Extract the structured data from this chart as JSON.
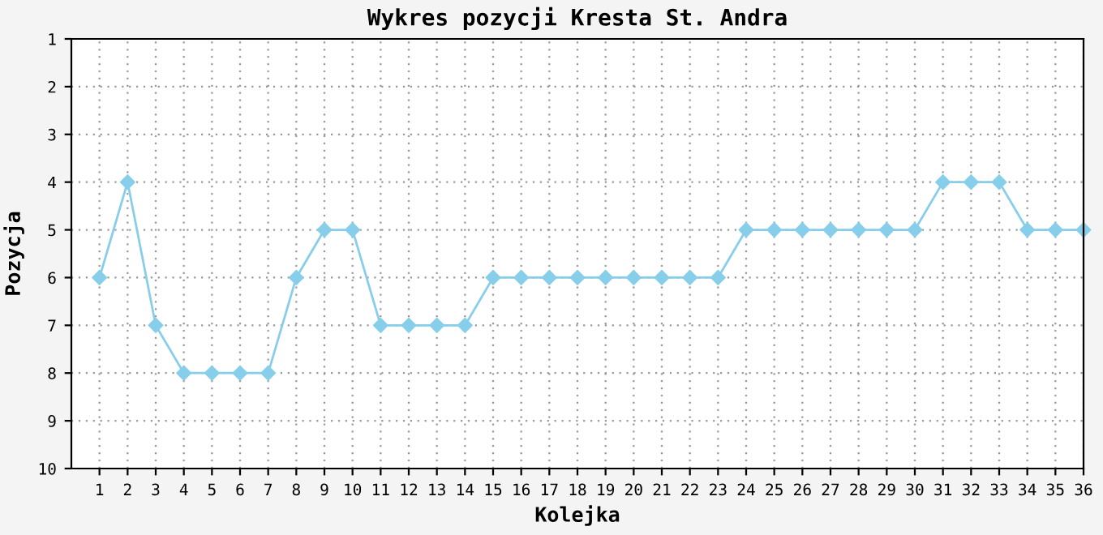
{
  "chart_data": {
    "type": "line",
    "title": "Wykres pozycji Kresta St. Andra",
    "xlabel": "Kolejka",
    "ylabel": "Pozycja",
    "x": [
      1,
      2,
      3,
      4,
      5,
      6,
      7,
      8,
      9,
      10,
      11,
      12,
      13,
      14,
      15,
      16,
      17,
      18,
      19,
      20,
      21,
      22,
      23,
      24,
      25,
      26,
      27,
      28,
      29,
      30,
      31,
      32,
      33,
      34,
      35,
      36
    ],
    "values": [
      6,
      4,
      7,
      8,
      8,
      8,
      8,
      6,
      5,
      5,
      7,
      7,
      7,
      7,
      6,
      6,
      6,
      6,
      6,
      6,
      6,
      6,
      6,
      5,
      5,
      5,
      5,
      5,
      5,
      5,
      4,
      4,
      4,
      5,
      5,
      5
    ],
    "color": "#87ceeb",
    "marker": "diamond",
    "line_style": "solid",
    "xlim": [
      0,
      36
    ],
    "xticks": [
      1,
      2,
      3,
      4,
      5,
      6,
      7,
      8,
      9,
      10,
      11,
      12,
      13,
      14,
      15,
      16,
      17,
      18,
      19,
      20,
      21,
      22,
      23,
      24,
      25,
      26,
      27,
      28,
      29,
      30,
      31,
      32,
      33,
      34,
      35,
      36
    ],
    "ylim": [
      10,
      1
    ],
    "yticks": [
      1,
      2,
      3,
      4,
      5,
      6,
      7,
      8,
      9,
      10
    ],
    "grid": true
  }
}
